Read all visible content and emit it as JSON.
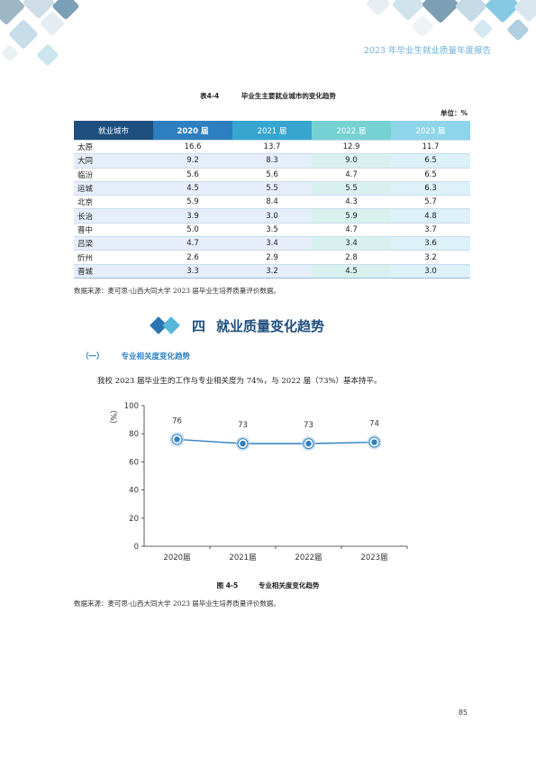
{
  "header": {
    "title": "2023 年毕业生就业质量年度报告"
  },
  "table": {
    "number": "表4-4",
    "title": "毕业生主要就业城市的变化趋势",
    "unit": "单位：%",
    "columns": [
      "就业城市",
      "2020 届",
      "2021 届",
      "2022 届",
      "2023 届"
    ],
    "rows": [
      {
        "city": "太原",
        "values": [
          "16.6",
          "13.7",
          "12.9",
          "11.7"
        ]
      },
      {
        "city": "大同",
        "values": [
          "9.2",
          "8.3",
          "9.0",
          "6.5"
        ]
      },
      {
        "city": "临汾",
        "values": [
          "5.6",
          "5.6",
          "4.7",
          "6.5"
        ]
      },
      {
        "city": "运城",
        "values": [
          "4.5",
          "5.5",
          "5.5",
          "6.3"
        ]
      },
      {
        "city": "北京",
        "values": [
          "5.9",
          "8.4",
          "4.3",
          "5.7"
        ]
      },
      {
        "city": "长治",
        "values": [
          "3.9",
          "3.0",
          "5.9",
          "4.8"
        ]
      },
      {
        "city": "晋中",
        "values": [
          "5.0",
          "3.5",
          "4.7",
          "3.7"
        ]
      },
      {
        "city": "吕梁",
        "values": [
          "4.7",
          "3.4",
          "3.4",
          "3.6"
        ]
      },
      {
        "city": "忻州",
        "values": [
          "2.6",
          "2.9",
          "2.8",
          "3.2"
        ]
      },
      {
        "city": "晋城",
        "values": [
          "3.3",
          "3.2",
          "4.5",
          "3.0"
        ]
      }
    ],
    "source": "数据来源：麦可思-山西大同大学 2023 届毕业生培养质量评价数据。"
  },
  "section": {
    "number": "四",
    "title": "就业质量变化趋势"
  },
  "subsection": {
    "index": "（一）",
    "title": "专业相关度变化趋势"
  },
  "paragraph": "我校 2023 届毕业生的工作与专业相关度为 74%，与 2022 届（73%）基本持平。",
  "chart_data": {
    "type": "line",
    "categories": [
      "2020届",
      "2021届",
      "2022届",
      "2023届"
    ],
    "values": [
      76,
      73,
      73,
      74
    ],
    "ylabel": "（%）",
    "ylim": [
      0,
      100
    ],
    "yticks": [
      0,
      20,
      40,
      60,
      80,
      100
    ],
    "grid": false,
    "colors": {
      "line": "#2e7fbf",
      "marker": "#2e7fbf",
      "halo": "#b8d6ee"
    }
  },
  "figure": {
    "number": "图 4-5",
    "title": "专业相关度变化趋势",
    "source": "数据来源：麦可思-山西大同大学 2023 届毕业生培养质量评价数据。"
  },
  "page_number": "85"
}
